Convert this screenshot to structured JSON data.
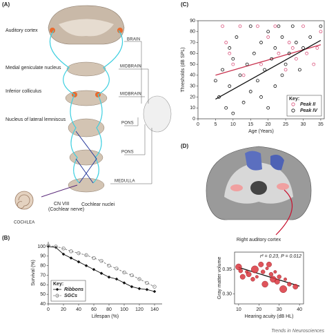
{
  "panels": [
    "(A)",
    "(B)",
    "(C)",
    "(D)"
  ],
  "diagram": {
    "structures": [
      "Auditory cortex",
      "Medial geniculate nucleus",
      "Inferior colliculus",
      "Nucleus of lateral lemniscus"
    ],
    "levels": [
      "BRAIN",
      "MIDBRAIN",
      "MIDBRAIN",
      "PONS",
      "PONS",
      "MEDULLA"
    ],
    "nerve": [
      "CN VIII",
      "(Cochlear nerve)"
    ],
    "nuclei": "Cochlear nuclei",
    "organ": "COCHLEA"
  },
  "brain": {
    "label": "Right auditory cortex"
  },
  "footer": "Trends in Neurosciences",
  "chart_data": [
    {
      "type": "line",
      "xlabel": "Lifespan (%)",
      "ylabel": "Survival (%)",
      "x": [
        0,
        10,
        20,
        30,
        40,
        50,
        60,
        70,
        80,
        90,
        100,
        110,
        120,
        130,
        140
      ],
      "xlim": [
        0,
        150
      ],
      "xticks": [
        0,
        20,
        40,
        60,
        80,
        100,
        120,
        140
      ],
      "ylim": [
        40,
        105
      ],
      "yticks": [
        40,
        50,
        60,
        70,
        80,
        90,
        100
      ],
      "frame": "axes",
      "legend": "lower left",
      "legend_title": "Key:",
      "series": [
        {
          "name": "Ribbons",
          "color": "#111111",
          "marker": "diamond",
          "dash": false,
          "values": [
            100,
            99,
            92,
            88,
            84,
            80,
            76,
            72,
            68,
            66,
            62,
            58,
            56,
            55,
            53
          ]
        },
        {
          "name": "SGCs",
          "color": "#777777",
          "marker": "circle-open",
          "dash": true,
          "values": [
            101,
            100,
            98,
            95,
            93,
            91,
            88,
            85,
            80,
            77,
            73,
            70,
            66,
            62,
            58
          ]
        }
      ]
    },
    {
      "type": "scatter",
      "xlabel": "Age (Years)",
      "ylabel": "Thresholds (dB SPL)",
      "xlim": [
        0,
        36
      ],
      "xticks": [
        0,
        5,
        10,
        15,
        20,
        25,
        30,
        35
      ],
      "ylim": [
        0,
        90
      ],
      "yticks": [
        0,
        10,
        20,
        30,
        40,
        50,
        60,
        70,
        80,
        90
      ],
      "frame": "box",
      "legend": "lower right",
      "legend_title": "Key:",
      "series": [
        {
          "name": "Peak II",
          "color": "#d9507a",
          "marker": "circle-open",
          "x": [
            7,
            8,
            9,
            10,
            12,
            13,
            17,
            18,
            20,
            22,
            23,
            25,
            26,
            27,
            28,
            30,
            31,
            33,
            34,
            35
          ],
          "values": [
            85,
            70,
            60,
            50,
            85,
            40,
            85,
            50,
            75,
            85,
            60,
            45,
            70,
            65,
            55,
            85,
            60,
            50,
            65,
            80
          ]
        },
        {
          "name": "Peak IV",
          "color": "#111111",
          "marker": "circle-open",
          "x": [
            5,
            6,
            7,
            8,
            9,
            9,
            10,
            10,
            11,
            12,
            13,
            14,
            15,
            15,
            16,
            17,
            18,
            18,
            19,
            20,
            20,
            21,
            22,
            22,
            23,
            24,
            24,
            25,
            26,
            26,
            27,
            28,
            29,
            30,
            32,
            35
          ],
          "values": [
            35,
            20,
            45,
            10,
            65,
            30,
            5,
            55,
            75,
            40,
            15,
            50,
            25,
            85,
            60,
            35,
            70,
            20,
            45,
            80,
            10,
            55,
            65,
            30,
            85,
            40,
            75,
            50,
            15,
            60,
            85,
            70,
            45,
            65,
            75,
            85
          ]
        }
      ],
      "trendlines": [
        {
          "color": "#c8334f",
          "x": [
            5,
            35
          ],
          "values": [
            40,
            68
          ]
        },
        {
          "color": "#111111",
          "x": [
            5,
            35
          ],
          "values": [
            18,
            72
          ]
        }
      ]
    },
    {
      "type": "scatter",
      "title": "r² = 0.23, P = 0.012",
      "xlabel": "Hearing acuity (dB HL)",
      "ylabel": "Gray matter volume",
      "xlim": [
        8,
        42
      ],
      "xticks": [
        10,
        20,
        30,
        40
      ],
      "ylim": [
        0.28,
        0.385
      ],
      "yticks": [
        {
          "value": 0.3,
          "label": "0.30"
        },
        0.35
      ],
      "frame": "box",
      "series": [
        {
          "color": "#d9363e",
          "marker": "circle",
          "x": [
            10,
            11,
            12,
            14,
            15,
            17,
            18,
            19,
            21,
            22,
            23,
            24,
            25,
            26,
            27,
            28,
            29,
            30,
            32,
            33,
            35,
            38
          ],
          "values": [
            0.355,
            0.347,
            0.335,
            0.345,
            0.34,
            0.33,
            0.35,
            0.335,
            0.36,
            0.345,
            0.32,
            0.352,
            0.36,
            0.34,
            0.33,
            0.345,
            0.325,
            0.335,
            0.31,
            0.33,
            0.32,
            0.315
          ],
          "sizes": [
            6,
            4,
            5,
            3,
            5,
            4,
            7,
            3,
            5,
            4,
            6,
            3,
            5,
            4,
            6,
            3,
            5,
            4,
            7,
            3,
            4,
            5
          ]
        }
      ],
      "trendlines": [
        {
          "color": "#111111",
          "x": [
            10,
            40
          ],
          "values": [
            0.354,
            0.316
          ]
        }
      ]
    }
  ]
}
